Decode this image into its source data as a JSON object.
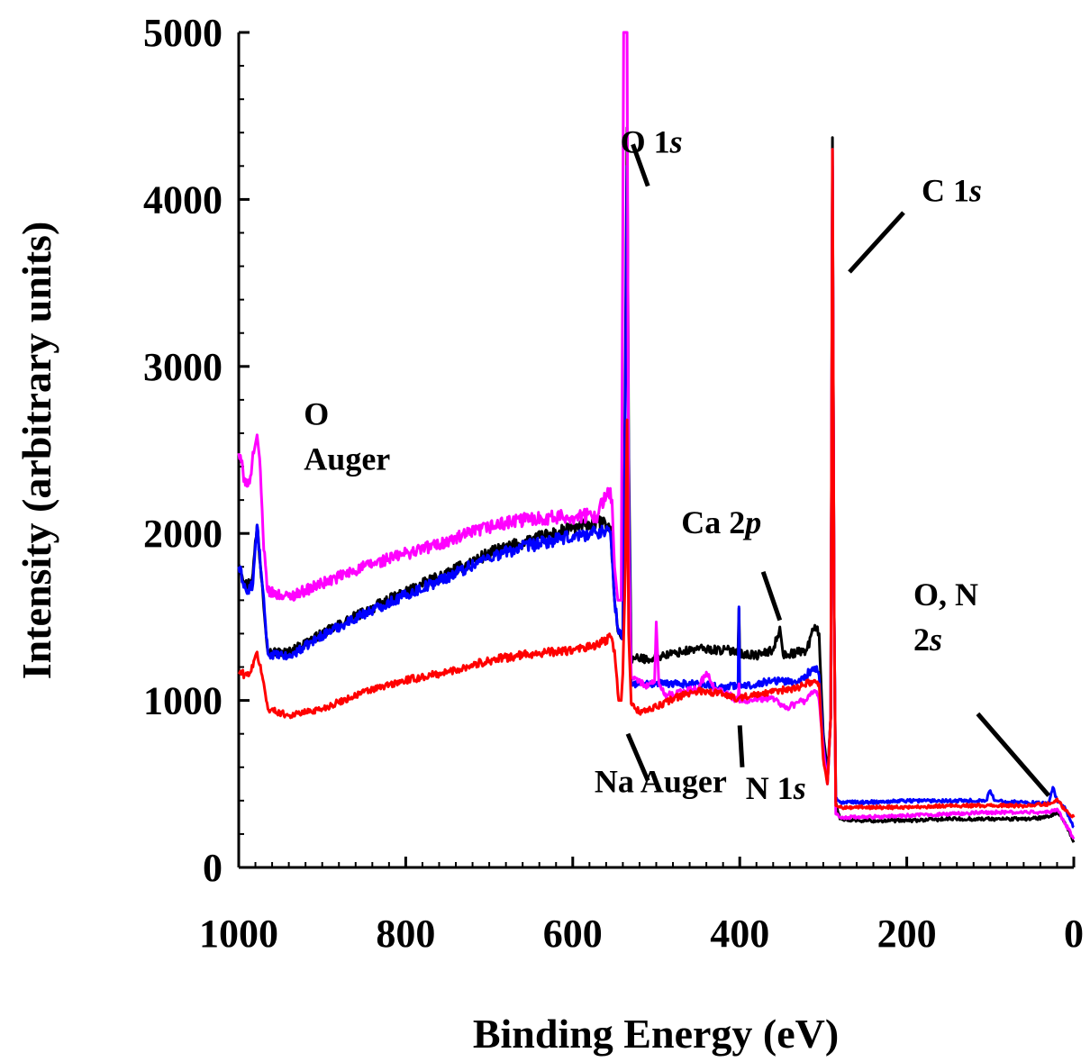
{
  "chart_data": {
    "type": "line",
    "xlabel": "Binding Energy (eV)",
    "ylabel": "Intensity (arbitrary units)",
    "xlim": [
      1000,
      0
    ],
    "ylim": [
      0,
      5000
    ],
    "x_reversed": true,
    "x_ticks": [
      1000,
      800,
      600,
      400,
      200,
      0
    ],
    "y_ticks": [
      0,
      1000,
      2000,
      3000,
      4000,
      5000
    ],
    "grid": false,
    "series": [
      {
        "color": "#000000",
        "points": [
          [
            1000,
            1820
          ],
          [
            990,
            1680
          ],
          [
            983,
            1760
          ],
          [
            978,
            2050
          ],
          [
            972,
            1700
          ],
          [
            965,
            1290
          ],
          [
            940,
            1290
          ],
          [
            900,
            1400
          ],
          [
            850,
            1530
          ],
          [
            800,
            1650
          ],
          [
            750,
            1760
          ],
          [
            700,
            1880
          ],
          [
            650,
            1960
          ],
          [
            600,
            2030
          ],
          [
            570,
            2070
          ],
          [
            555,
            2040
          ],
          [
            550,
            1600
          ],
          [
            545,
            1400
          ],
          [
            540,
            1380
          ],
          [
            537,
            3000
          ],
          [
            535,
            4430
          ],
          [
            533,
            2500
          ],
          [
            530,
            1250
          ],
          [
            510,
            1250
          ],
          [
            500,
            1260
          ],
          [
            470,
            1290
          ],
          [
            450,
            1310
          ],
          [
            420,
            1300
          ],
          [
            402,
            1300
          ],
          [
            401,
            1550
          ],
          [
            400,
            1280
          ],
          [
            380,
            1270
          ],
          [
            360,
            1300
          ],
          [
            352,
            1440
          ],
          [
            348,
            1270
          ],
          [
            320,
            1300
          ],
          [
            310,
            1450
          ],
          [
            305,
            1400
          ],
          [
            300,
            800
          ],
          [
            295,
            550
          ],
          [
            291,
            900
          ],
          [
            289,
            4370
          ],
          [
            287,
            1500
          ],
          [
            285,
            390
          ],
          [
            280,
            290
          ],
          [
            250,
            280
          ],
          [
            200,
            280
          ],
          [
            150,
            290
          ],
          [
            100,
            290
          ],
          [
            60,
            290
          ],
          [
            30,
            300
          ],
          [
            20,
            330
          ],
          [
            10,
            260
          ],
          [
            0,
            150
          ]
        ]
      },
      {
        "color": "#0000ff",
        "points": [
          [
            1000,
            1800
          ],
          [
            990,
            1640
          ],
          [
            983,
            1700
          ],
          [
            978,
            2050
          ],
          [
            972,
            1700
          ],
          [
            965,
            1280
          ],
          [
            940,
            1260
          ],
          [
            900,
            1390
          ],
          [
            850,
            1520
          ],
          [
            800,
            1630
          ],
          [
            750,
            1740
          ],
          [
            700,
            1860
          ],
          [
            650,
            1930
          ],
          [
            600,
            1980
          ],
          [
            560,
            2020
          ],
          [
            555,
            2010
          ],
          [
            550,
            1600
          ],
          [
            545,
            1400
          ],
          [
            540,
            1390
          ],
          [
            537,
            2800
          ],
          [
            535,
            4200
          ],
          [
            533,
            2300
          ],
          [
            530,
            1100
          ],
          [
            510,
            1100
          ],
          [
            500,
            1100
          ],
          [
            470,
            1100
          ],
          [
            450,
            1100
          ],
          [
            420,
            1080
          ],
          [
            402,
            1090
          ],
          [
            401,
            1560
          ],
          [
            400,
            1080
          ],
          [
            380,
            1100
          ],
          [
            360,
            1120
          ],
          [
            330,
            1110
          ],
          [
            310,
            1200
          ],
          [
            305,
            1150
          ],
          [
            300,
            750
          ],
          [
            295,
            500
          ],
          [
            291,
            900
          ],
          [
            289,
            4200
          ],
          [
            287,
            1500
          ],
          [
            285,
            410
          ],
          [
            280,
            390
          ],
          [
            250,
            390
          ],
          [
            200,
            400
          ],
          [
            150,
            400
          ],
          [
            105,
            400
          ],
          [
            100,
            460
          ],
          [
            95,
            400
          ],
          [
            60,
            390
          ],
          [
            30,
            380
          ],
          [
            25,
            480
          ],
          [
            20,
            400
          ],
          [
            10,
            350
          ],
          [
            0,
            240
          ]
        ]
      },
      {
        "color": "#ff00ff",
        "points": [
          [
            1000,
            2480
          ],
          [
            993,
            2330
          ],
          [
            987,
            2300
          ],
          [
            982,
            2480
          ],
          [
            978,
            2590
          ],
          [
            975,
            2450
          ],
          [
            970,
            1900
          ],
          [
            965,
            1650
          ],
          [
            940,
            1620
          ],
          [
            900,
            1700
          ],
          [
            850,
            1800
          ],
          [
            800,
            1880
          ],
          [
            750,
            1950
          ],
          [
            700,
            2040
          ],
          [
            650,
            2090
          ],
          [
            600,
            2100
          ],
          [
            570,
            2110
          ],
          [
            558,
            2270
          ],
          [
            553,
            2200
          ],
          [
            550,
            1800
          ],
          [
            546,
            1600
          ],
          [
            542,
            1600
          ],
          [
            539,
            5000
          ],
          [
            535,
            5000
          ],
          [
            533,
            2000
          ],
          [
            530,
            1140
          ],
          [
            510,
            1080
          ],
          [
            502,
            1110
          ],
          [
            500,
            1470
          ],
          [
            497,
            1110
          ],
          [
            490,
            1030
          ],
          [
            470,
            1050
          ],
          [
            450,
            1070
          ],
          [
            440,
            1170
          ],
          [
            430,
            1060
          ],
          [
            420,
            1050
          ],
          [
            402,
            1000
          ],
          [
            401,
            1100
          ],
          [
            400,
            990
          ],
          [
            380,
            1000
          ],
          [
            360,
            1020
          ],
          [
            345,
            950
          ],
          [
            330,
            990
          ],
          [
            320,
            1000
          ],
          [
            310,
            1060
          ],
          [
            305,
            1000
          ],
          [
            300,
            720
          ],
          [
            295,
            500
          ],
          [
            291,
            900
          ],
          [
            289,
            4300
          ],
          [
            287,
            1500
          ],
          [
            285,
            320
          ],
          [
            280,
            300
          ],
          [
            250,
            300
          ],
          [
            200,
            310
          ],
          [
            150,
            320
          ],
          [
            100,
            330
          ],
          [
            60,
            330
          ],
          [
            30,
            330
          ],
          [
            20,
            350
          ],
          [
            10,
            260
          ],
          [
            0,
            170
          ]
        ]
      },
      {
        "color": "#ff0000",
        "points": [
          [
            1000,
            1170
          ],
          [
            990,
            1150
          ],
          [
            983,
            1200
          ],
          [
            978,
            1290
          ],
          [
            972,
            1150
          ],
          [
            965,
            950
          ],
          [
            940,
            910
          ],
          [
            900,
            950
          ],
          [
            850,
            1050
          ],
          [
            800,
            1120
          ],
          [
            750,
            1170
          ],
          [
            700,
            1240
          ],
          [
            650,
            1280
          ],
          [
            600,
            1300
          ],
          [
            570,
            1330
          ],
          [
            555,
            1380
          ],
          [
            550,
            1300
          ],
          [
            545,
            1000
          ],
          [
            542,
            1000
          ],
          [
            540,
            1160
          ],
          [
            537,
            1800
          ],
          [
            535,
            2680
          ],
          [
            533,
            1400
          ],
          [
            530,
            980
          ],
          [
            520,
            930
          ],
          [
            500,
            960
          ],
          [
            480,
            1010
          ],
          [
            450,
            1060
          ],
          [
            420,
            1040
          ],
          [
            402,
            1010
          ],
          [
            400,
            1020
          ],
          [
            380,
            1030
          ],
          [
            360,
            1050
          ],
          [
            330,
            1080
          ],
          [
            310,
            1120
          ],
          [
            305,
            1100
          ],
          [
            300,
            650
          ],
          [
            295,
            500
          ],
          [
            291,
            900
          ],
          [
            289,
            4300
          ],
          [
            287,
            1500
          ],
          [
            285,
            370
          ],
          [
            280,
            360
          ],
          [
            250,
            360
          ],
          [
            200,
            360
          ],
          [
            150,
            370
          ],
          [
            100,
            370
          ],
          [
            60,
            370
          ],
          [
            30,
            380
          ],
          [
            20,
            410
          ],
          [
            10,
            340
          ],
          [
            0,
            300
          ]
        ]
      }
    ],
    "annotations": [
      {
        "lines": [
          "O 1s"
        ],
        "italic": [
          "s"
        ],
        "x": 543,
        "y": 4280,
        "anchor": "start",
        "leader": [
          [
            528,
            4330
          ],
          [
            510,
            4080
          ]
        ]
      },
      {
        "lines": [
          "C 1s"
        ],
        "italic": [
          "s"
        ],
        "x": 110,
        "y": 3990,
        "anchor": "end",
        "leader": [
          [
            1200,
            1200
          ],
          [
            1200,
            1200
          ]
        ]
      },
      {
        "lines": [
          "O",
          "Auger"
        ],
        "italic": [],
        "x": 922,
        "y": 2650,
        "anchor": "start",
        "leader": null
      },
      {
        "lines": [
          "Ca 2p"
        ],
        "italic": [
          "p"
        ],
        "x": 470,
        "y": 2000,
        "anchor": "start",
        "leader": [
          [
            372,
            1770
          ],
          [
            352,
            1480
          ]
        ]
      },
      {
        "lines": [
          "Na Auger"
        ],
        "italic": [],
        "x": 574,
        "y": 450,
        "anchor": "start",
        "leader": [
          [
            534,
            800
          ],
          [
            510,
            520
          ]
        ]
      },
      {
        "lines": [
          "N 1s"
        ],
        "italic": [
          "s"
        ],
        "x": 393,
        "y": 410,
        "anchor": "start",
        "leader": [
          [
            400,
            850
          ],
          [
            397,
            600
          ]
        ]
      },
      {
        "lines": [
          "O, N",
          "2s"
        ],
        "italic": [
          "s"
        ],
        "x": 192,
        "y": 1570,
        "anchor": "start",
        "leader": [
          [
            115,
            920
          ],
          [
            30,
            430
          ]
        ]
      }
    ]
  }
}
